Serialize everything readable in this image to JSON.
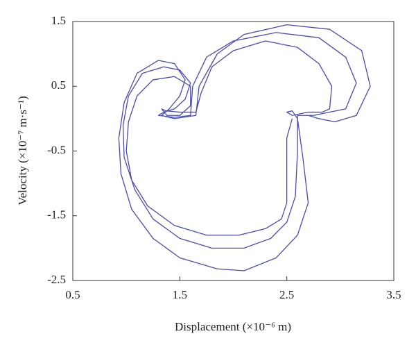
{
  "chart_data": {
    "type": "line",
    "xlabel": "Displacement (×10⁻⁶ m)",
    "ylabel": "Velocity (×10⁻⁷ m·s⁻¹)",
    "xlim": [
      0.5,
      3.5
    ],
    "xticks": [
      0.5,
      1.5,
      2.5,
      3.5
    ],
    "ylim": [
      -2.5,
      1.5
    ],
    "yticks": [
      1.5,
      0.5,
      -0.5,
      -1.5,
      -2.5
    ],
    "x": [
      2.55,
      2.5,
      2.5,
      2.5,
      2.45,
      2.3,
      2.05,
      1.75,
      1.45,
      1.2,
      1.05,
      1.0,
      1.02,
      1.1,
      1.25,
      1.45,
      1.6,
      1.6,
      1.5,
      1.38,
      1.33,
      1.37,
      1.5,
      1.65,
      1.7,
      1.8,
      2.0,
      2.3,
      2.6,
      2.8,
      2.92,
      2.9,
      2.83,
      2.7,
      2.55,
      2.5,
      2.55,
      2.6,
      2.6,
      2.58,
      2.5,
      2.35,
      2.1,
      1.8,
      1.5,
      1.25,
      1.08,
      0.98,
      0.97,
      1.02,
      1.15,
      1.35,
      1.5,
      1.6,
      1.55,
      1.45,
      1.35,
      1.3,
      1.45,
      1.6,
      1.62,
      1.75,
      2.0,
      2.4,
      2.8,
      3.05,
      3.15,
      3.05,
      2.9,
      2.75,
      2.6,
      2.6,
      2.65,
      2.7,
      2.6,
      2.4,
      2.1,
      1.85,
      1.5,
      1.25,
      1.05,
      0.95,
      0.93,
      0.98,
      1.1,
      1.3,
      1.45,
      1.55,
      1.5,
      1.4,
      1.33,
      1.45,
      1.65,
      1.68,
      1.85,
      2.1,
      2.5,
      2.9,
      3.2,
      3.28,
      3.15,
      2.95,
      2.8,
      2.7
    ],
    "series": [
      {
        "color": "#4a4aad",
        "values": [
          0.0,
          -0.3,
          -0.8,
          -1.3,
          -1.55,
          -1.7,
          -1.8,
          -1.8,
          -1.65,
          -1.35,
          -0.95,
          -0.5,
          -0.05,
          0.35,
          0.6,
          0.65,
          0.5,
          0.2,
          0.05,
          0.05,
          0.15,
          0.12,
          0.1,
          0.1,
          0.4,
          0.8,
          1.05,
          1.2,
          1.1,
          0.85,
          0.5,
          0.15,
          0.1,
          0.1,
          0.05,
          0.1,
          0.12,
          0.0,
          -0.5,
          -1.2,
          -1.6,
          -1.85,
          -2.0,
          -2.0,
          -1.85,
          -1.55,
          -1.1,
          -0.6,
          -0.1,
          0.35,
          0.7,
          0.8,
          0.75,
          0.55,
          0.3,
          0.15,
          0.1,
          0.05,
          0.02,
          0.05,
          0.5,
          0.95,
          1.2,
          1.33,
          1.25,
          0.95,
          0.55,
          0.15,
          0.1,
          0.05,
          0.05,
          0.0,
          -0.6,
          -1.3,
          -1.8,
          -2.15,
          -2.35,
          -2.32,
          -2.15,
          -1.85,
          -1.4,
          -0.85,
          -0.3,
          0.25,
          0.7,
          0.9,
          0.85,
          0.6,
          0.35,
          0.15,
          0.05,
          0.0,
          0.05,
          0.5,
          1.0,
          1.3,
          1.45,
          1.38,
          1.05,
          0.5,
          0.05,
          -0.05,
          0.0,
          0.05
        ]
      }
    ]
  }
}
